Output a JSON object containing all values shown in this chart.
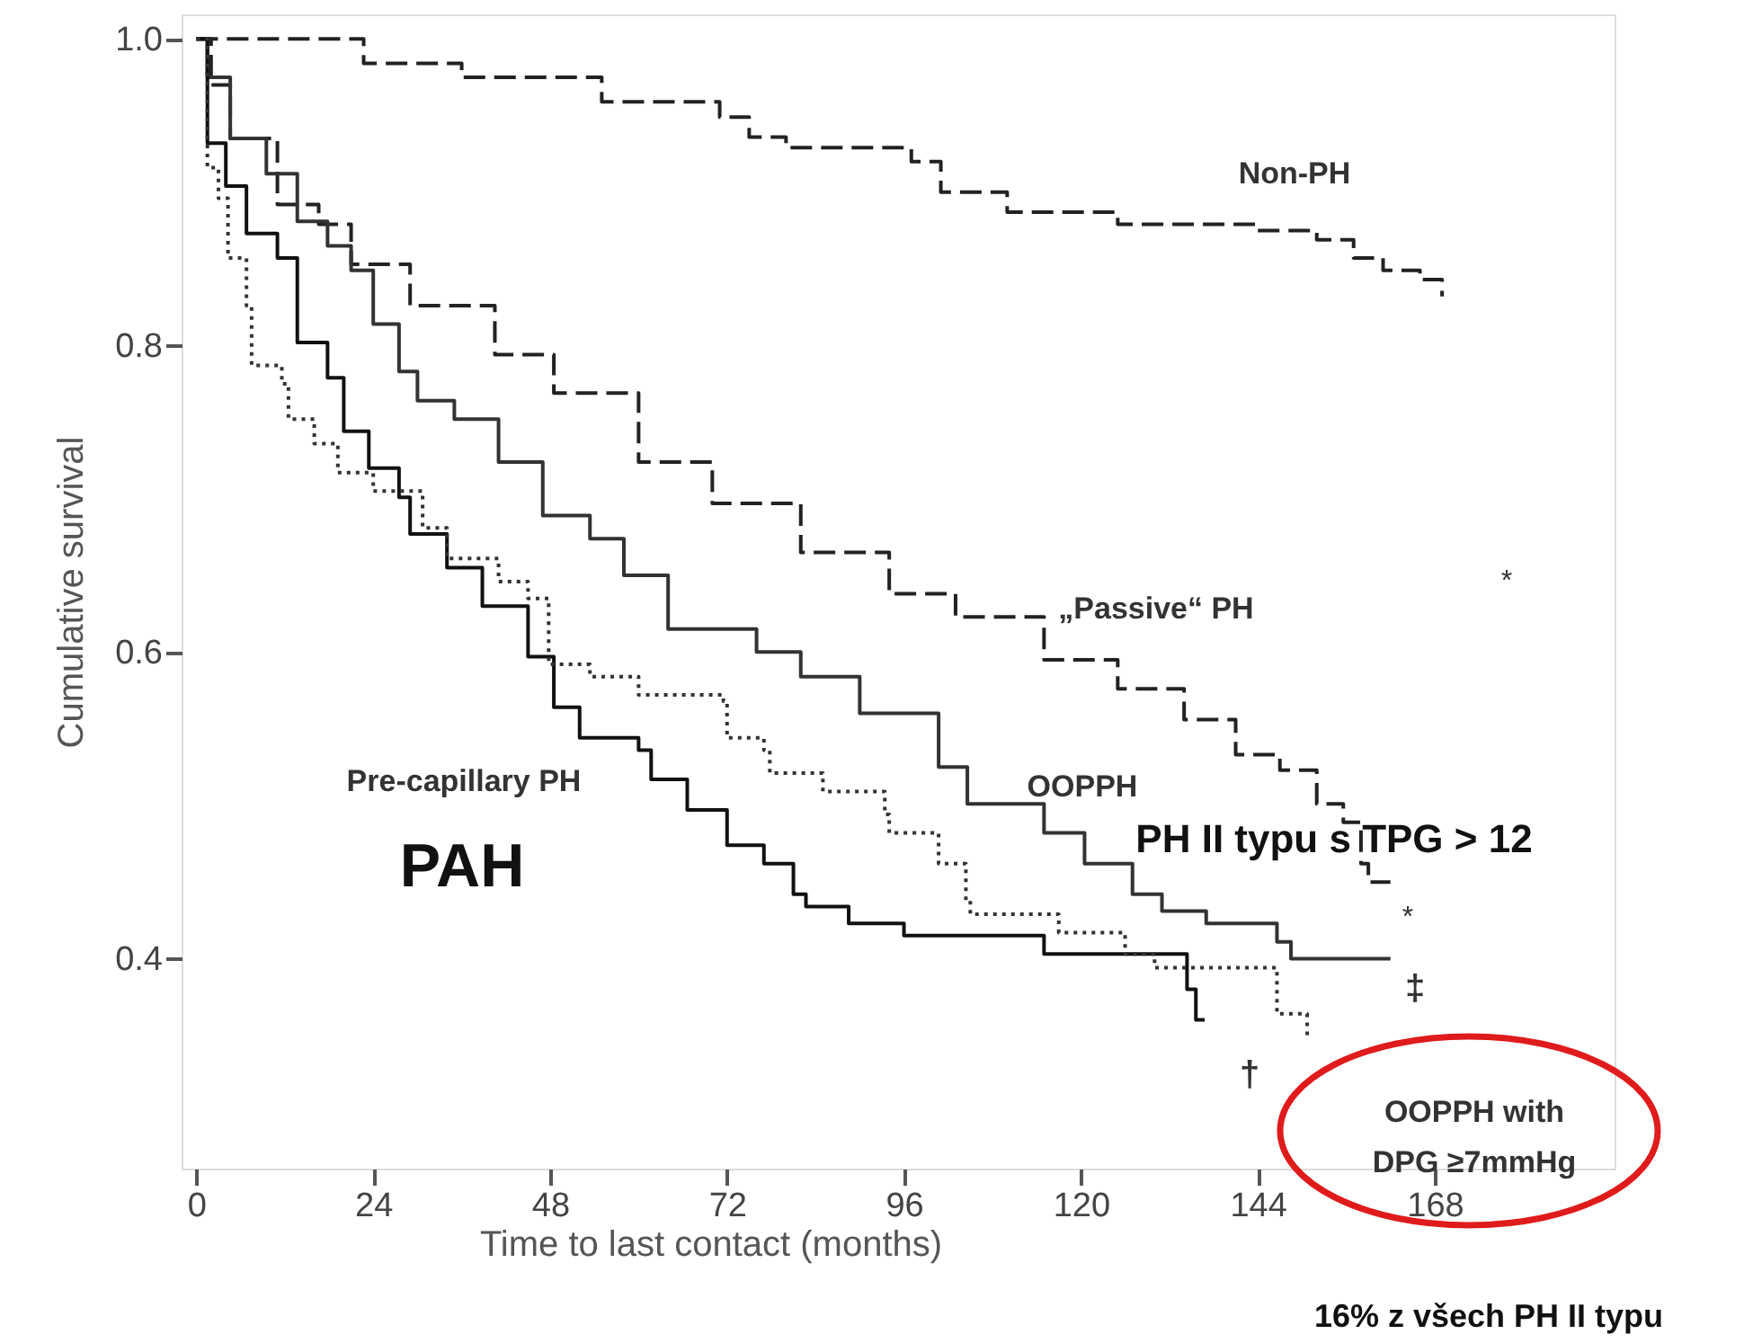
{
  "chart_data": {
    "type": "step",
    "xlabel": "Time to last contact (months)",
    "ylabel": "Cumulative survival",
    "xlim": [
      -2,
      192.4
    ],
    "ylim": [
      0.263,
      1.016
    ],
    "xticks": [
      0,
      24,
      48,
      72,
      96,
      120,
      144,
      168
    ],
    "yticks": [
      {
        "value": 0.4,
        "label": "0.4"
      },
      {
        "value": 0.6,
        "label": "0.6"
      },
      {
        "value": 0.8,
        "label": "0.8"
      },
      {
        "value": 1.0,
        "label": "1.0"
      }
    ],
    "grid": false,
    "marker": "none",
    "series": [
      {
        "color": "#222222",
        "line_style": "dashed",
        "x": [
          0,
          20,
          22.7,
          33,
          36,
          52,
          55,
          68,
          71,
          75,
          80,
          95,
          97,
          101,
          110,
          125,
          144,
          152,
          157,
          161,
          166,
          169
        ],
        "values": [
          1.0,
          1.0,
          0.984,
          0.984,
          0.975,
          0.975,
          0.959,
          0.959,
          0.949,
          0.936,
          0.929,
          0.929,
          0.92,
          0.9,
          0.887,
          0.879,
          0.875,
          0.869,
          0.857,
          0.849,
          0.843,
          0.832
        ]
      },
      {
        "color": "#222222",
        "line_style": "dashed",
        "x": [
          0,
          2,
          4.6,
          11,
          16.6,
          21,
          29,
          40.5,
          48.5,
          60,
          70,
          82,
          94,
          103,
          115,
          125,
          134,
          141,
          147,
          152,
          155.6,
          158,
          159,
          162
        ],
        "values": [
          1.0,
          0.97,
          0.935,
          0.892,
          0.879,
          0.853,
          0.826,
          0.794,
          0.769,
          0.724,
          0.697,
          0.665,
          0.638,
          0.623,
          0.595,
          0.576,
          0.556,
          0.533,
          0.523,
          0.501,
          0.489,
          0.462,
          0.45,
          0.45
        ]
      },
      {
        "color": "#333333",
        "line_style": "solid",
        "x": [
          0,
          1.5,
          4.6,
          9.5,
          13.7,
          17.8,
          21,
          24,
          27.5,
          30,
          35,
          41,
          47,
          53.4,
          58,
          64,
          76,
          82,
          90,
          100.7,
          104.6,
          115,
          120.5,
          127,
          131,
          137,
          146.6,
          148.5,
          162
        ],
        "values": [
          1.0,
          0.975,
          0.935,
          0.912,
          0.881,
          0.865,
          0.849,
          0.814,
          0.783,
          0.764,
          0.752,
          0.724,
          0.689,
          0.674,
          0.65,
          0.615,
          0.6,
          0.584,
          0.56,
          0.525,
          0.501,
          0.482,
          0.462,
          0.442,
          0.431,
          0.423,
          0.411,
          0.4,
          0.4
        ]
      },
      {
        "color": "#111111",
        "line_style": "solid",
        "x": [
          0,
          1.5,
          4,
          6.8,
          11,
          13.7,
          17.8,
          20,
          23.4,
          27.5,
          29,
          34,
          38.8,
          45,
          48.5,
          52,
          60,
          61.7,
          66.6,
          72,
          77,
          81,
          82.7,
          88.5,
          96,
          115,
          134.4,
          135.6,
          136.8
        ],
        "values": [
          1.0,
          0.932,
          0.904,
          0.873,
          0.857,
          0.802,
          0.779,
          0.744,
          0.72,
          0.701,
          0.677,
          0.655,
          0.63,
          0.597,
          0.564,
          0.544,
          0.536,
          0.517,
          0.497,
          0.474,
          0.462,
          0.442,
          0.434,
          0.423,
          0.415,
          0.403,
          0.38,
          0.36,
          0.36
        ]
      },
      {
        "color": "#333333",
        "line_style": "dotted",
        "x": [
          0,
          1.5,
          3,
          4.3,
          6.8,
          7.5,
          11.6,
          12.5,
          16,
          19.2,
          24,
          30.7,
          34,
          41,
          45,
          47.8,
          53.4,
          60,
          71.5,
          72,
          77,
          77.8,
          85,
          93.4,
          94,
          100.7,
          104.4,
          105,
          117,
          126,
          130,
          146.6,
          150.7
        ],
        "values": [
          1.0,
          0.916,
          0.896,
          0.857,
          0.826,
          0.787,
          0.775,
          0.752,
          0.736,
          0.717,
          0.705,
          0.681,
          0.661,
          0.646,
          0.635,
          0.592,
          0.584,
          0.572,
          0.568,
          0.544,
          0.536,
          0.521,
          0.509,
          0.494,
          0.482,
          0.462,
          0.438,
          0.429,
          0.417,
          0.403,
          0.394,
          0.364,
          0.349
        ]
      }
    ],
    "annotations": [
      "Non-PH",
      "„Passive“ PH",
      "OOPPH",
      "Pre-capillary PH",
      "PAH",
      "PH II typu s TPG > 12",
      "OOPPH with\nDPG ≥7mmHg",
      "*",
      "*",
      "‡",
      "†",
      "16% z všech PH II typu"
    ]
  }
}
